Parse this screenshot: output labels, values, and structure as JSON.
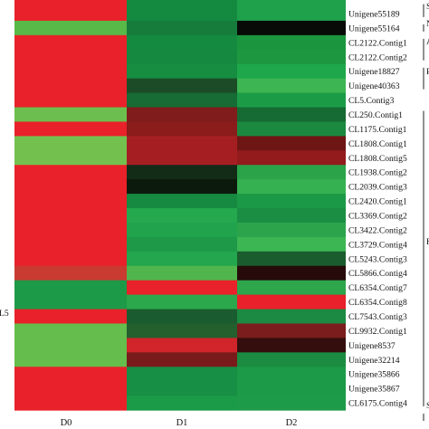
{
  "chart_data": {
    "type": "heatmap",
    "columns": [
      "D0",
      "D1",
      "D2"
    ],
    "rows": [
      "Unigene55189",
      "Unigene55164",
      "CL2122.Contig1",
      "CL2122.Contig2",
      "Unigene18827",
      "Unigene40363",
      "CL5.Contig3",
      "CL250.Contig1",
      "CL1175.Contig1",
      "CL1808.Contig1",
      "CL1808.Contig5",
      "CL1938.Contig2",
      "CL2039.Contig3",
      "CL2420.Contig1",
      "CL3369.Contig2",
      "CL3422.Contig2",
      "CL3729.Contig4",
      "CL5243.Contig3",
      "CL5866.Contig4",
      "CL6354.Contig7",
      "CL6354.Contig8",
      "CL7543.Contig3",
      "CL9932.Contig1",
      "Unigene8537",
      "Unigene32214",
      "Unigene35866",
      "Unigene35867",
      "CL6175.Contig4"
    ],
    "colors": [
      [
        "#e8212a",
        "#148a40",
        "#1fa04b"
      ],
      [
        "#58b948",
        "#167c3c",
        "#070a07"
      ],
      [
        "#e8212a",
        "#148a40",
        "#1b963f"
      ],
      [
        "#e8212a",
        "#168940",
        "#1d9840"
      ],
      [
        "#e8212a",
        "#168d41",
        "#1ea84b"
      ],
      [
        "#e8212a",
        "#1b4c27",
        "#3cb552"
      ],
      [
        "#e8212a",
        "#176b35",
        "#1c9b47"
      ],
      [
        "#6cbf4e",
        "#801c1b",
        "#166a33"
      ],
      [
        "#e8212a",
        "#8b1c1c",
        "#1b8a40"
      ],
      [
        "#74c04f",
        "#a51f22",
        "#6e1614"
      ],
      [
        "#74c04f",
        "#a51f22",
        "#931b1c"
      ],
      [
        "#e8212a",
        "#132c18",
        "#2ba449"
      ],
      [
        "#e8212a",
        "#0c1a0d",
        "#36b152"
      ],
      [
        "#e8212a",
        "#168a40",
        "#1c9947"
      ],
      [
        "#e8212a",
        "#24a94e",
        "#1b8e43"
      ],
      [
        "#e8212a",
        "#20a34c",
        "#2ba44b"
      ],
      [
        "#e8212a",
        "#1d9948",
        "#3cb553"
      ],
      [
        "#e8212a",
        "#23a64d",
        "#1a5c2e"
      ],
      [
        "#c93b30",
        "#4fb54c",
        "#260b0a"
      ],
      [
        "#1d9a48",
        "#e8212a",
        "#2ea64c"
      ],
      [
        "#1d9a48",
        "#2aa84b",
        "#e8212a"
      ],
      [
        "#e8212a",
        "#1a5c2f",
        "#1c8a42"
      ],
      [
        "#64bd4c",
        "#245f2e",
        "#7a1d1c"
      ],
      [
        "#64bd4c",
        "#d0252a",
        "#340e0d"
      ],
      [
        "#64bd4c",
        "#7a1b1b",
        "#1b8c41"
      ],
      [
        "#e8212a",
        "#178f44",
        "#1c9a47"
      ],
      [
        "#e8212a",
        "#178f44",
        "#1c9a47"
      ],
      [
        "#e8212a",
        "#1b9a47",
        "#1d9b48"
      ]
    ],
    "side_labels": [
      "S",
      "N",
      "A",
      "R",
      "F",
      "S"
    ],
    "left_label": "L5"
  }
}
